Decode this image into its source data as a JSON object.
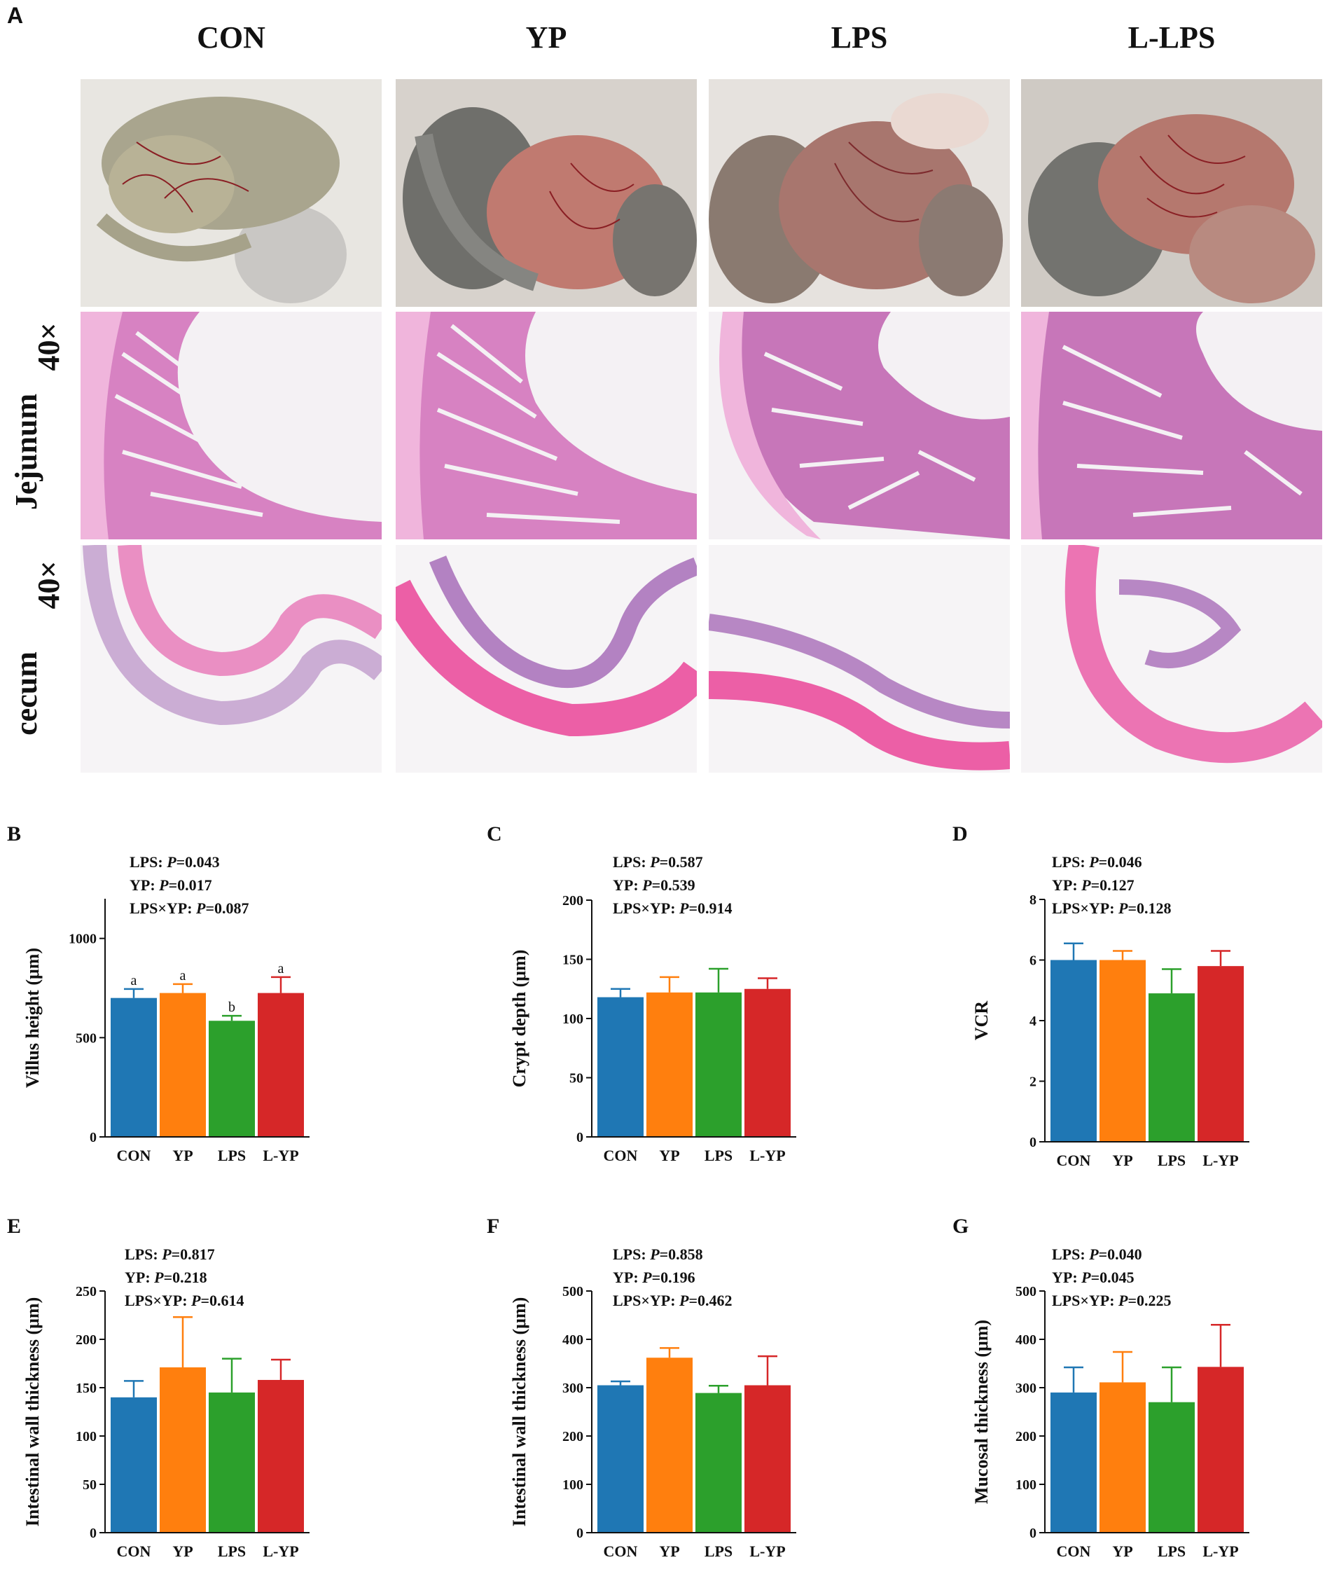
{
  "panel_a": {
    "letter": "A",
    "columns": [
      "CON",
      "YP",
      "LPS",
      "L-LPS"
    ],
    "rows": [
      {
        "name": "gross-photo",
        "label_top": "",
        "label_bottom": ""
      },
      {
        "name": "jejunum",
        "label_top": "40×",
        "label_bottom": "Jejunum"
      },
      {
        "name": "cecum",
        "label_top": "40×",
        "label_bottom": "cecum"
      }
    ]
  },
  "colors": {
    "CON": "#1f77b4",
    "YP": "#ff7f0e",
    "LPS": "#2ca02c",
    "L-YP": "#d62728"
  },
  "chart_data": [
    {
      "id": "B",
      "type": "bar",
      "categories": [
        "CON",
        "YP",
        "LPS",
        "L-YP"
      ],
      "values": [
        700,
        725,
        585,
        725
      ],
      "errors": [
        45,
        45,
        25,
        80
      ],
      "letters": [
        "a",
        "a",
        "b",
        "a"
      ],
      "ylabel": "Villus height (μm)",
      "ylim": [
        0,
        1200
      ],
      "yticks": [
        0,
        500,
        1000
      ],
      "yticklabels": [
        "0",
        "500",
        "1000"
      ],
      "stats": [
        {
          "label": "LPS: ",
          "p": "=0.043"
        },
        {
          "label": "YP: ",
          "p": "=0.017"
        },
        {
          "label": "LPS×YP: ",
          "p": "=0.087"
        }
      ]
    },
    {
      "id": "C",
      "type": "bar",
      "categories": [
        "CON",
        "YP",
        "LPS",
        "L-YP"
      ],
      "values": [
        118,
        122,
        122,
        125
      ],
      "errors": [
        7,
        13,
        20,
        9
      ],
      "letters": [],
      "ylabel": "Crypt depth (μm)",
      "ylim": [
        0,
        200
      ],
      "yticks": [
        0,
        50,
        100,
        150,
        200
      ],
      "yticklabels": [
        "0",
        "50",
        "100",
        "150",
        "200"
      ],
      "stats": [
        {
          "label": "LPS: ",
          "p": "=0.587"
        },
        {
          "label": "YP: ",
          "p": "=0.539"
        },
        {
          "label": "LPS×YP: ",
          "p": "=0.914"
        }
      ]
    },
    {
      "id": "D",
      "type": "bar",
      "categories": [
        "CON",
        "YP",
        "LPS",
        "L-YP"
      ],
      "values": [
        6.0,
        6.0,
        4.9,
        5.8
      ],
      "errors": [
        0.55,
        0.3,
        0.8,
        0.5
      ],
      "letters": [],
      "ylabel": "VCR",
      "ylim": [
        0,
        8
      ],
      "yticks": [
        0,
        2,
        4,
        6,
        8
      ],
      "yticklabels": [
        "0",
        "2",
        "4",
        "6",
        "8"
      ],
      "stats": [
        {
          "label": "LPS: ",
          "p": "=0.046"
        },
        {
          "label": "YP: ",
          "p": "=0.127"
        },
        {
          "label": "LPS×YP: ",
          "p": "=0.128"
        }
      ]
    },
    {
      "id": "E",
      "type": "bar",
      "categories": [
        "CON",
        "YP",
        "LPS",
        "L-YP"
      ],
      "values": [
        140,
        171,
        145,
        158
      ],
      "errors": [
        17,
        52,
        35,
        21
      ],
      "letters": [],
      "ylabel": "Intestinal wall thickness (μm)",
      "ylim": [
        0,
        250
      ],
      "yticks": [
        0,
        50,
        100,
        150,
        200,
        250
      ],
      "yticklabels": [
        "0",
        "50",
        "100",
        "150",
        "200",
        "250"
      ],
      "stats": [
        {
          "label": "LPS: ",
          "p": "=0.817"
        },
        {
          "label": "YP: ",
          "p": "=0.218"
        },
        {
          "label": "LPS×YP: ",
          "p": "=0.614"
        }
      ]
    },
    {
      "id": "F",
      "type": "bar",
      "categories": [
        "CON",
        "YP",
        "LPS",
        "L-YP"
      ],
      "values": [
        305,
        362,
        289,
        305
      ],
      "errors": [
        8,
        20,
        15,
        60
      ],
      "letters": [],
      "ylabel": "Intestinal wall thickness (μm)",
      "ylim": [
        0,
        500
      ],
      "yticks": [
        0,
        100,
        200,
        300,
        400,
        500
      ],
      "yticklabels": [
        "0",
        "100",
        "200",
        "300",
        "400",
        "500"
      ],
      "stats": [
        {
          "label": "LPS: ",
          "p": "=0.858"
        },
        {
          "label": "YP: ",
          "p": "=0.196"
        },
        {
          "label": "LPS×YP: ",
          "p": "=0.462"
        }
      ]
    },
    {
      "id": "G",
      "type": "bar",
      "categories": [
        "CON",
        "YP",
        "LPS",
        "L-YP"
      ],
      "values": [
        290,
        311,
        270,
        343
      ],
      "errors": [
        52,
        63,
        72,
        87
      ],
      "letters": [],
      "ylabel": "Mucosal thickness (μm)",
      "ylim": [
        0,
        500
      ],
      "yticks": [
        0,
        100,
        200,
        300,
        400,
        500
      ],
      "yticklabels": [
        "0",
        "100",
        "200",
        "300",
        "400",
        "500"
      ],
      "stats": [
        {
          "label": "LPS: ",
          "p": "=0.040"
        },
        {
          "label": "YP: ",
          "p": "=0.045"
        },
        {
          "label": "LPS×YP: ",
          "p": "=0.225"
        }
      ]
    }
  ]
}
